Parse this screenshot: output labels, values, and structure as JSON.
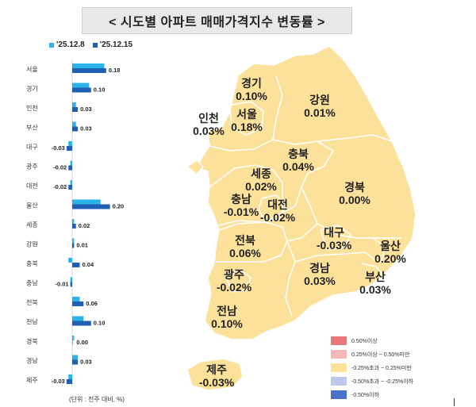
{
  "title": "< 시도별 아파트 매매가격지수 변동률 >",
  "legend": {
    "series": [
      {
        "name": "'25.12.8",
        "color": "#29b3e8"
      },
      {
        "name": "'25.12.15",
        "color": "#1f5fb4"
      }
    ]
  },
  "unit_note": "(단위 : 전주 대비, %)",
  "chart_data": {
    "type": "bar",
    "orientation": "horizontal",
    "categories": [
      "서울",
      "경기",
      "인천",
      "부산",
      "대구",
      "광주",
      "대전",
      "울산",
      "세종",
      "강원",
      "충북",
      "충남",
      "전북",
      "전남",
      "경북",
      "경남",
      "제주"
    ],
    "series": [
      {
        "name": "'25.12.8",
        "values": [
          0.17,
          0.09,
          0.02,
          0.02,
          -0.02,
          -0.01,
          -0.01,
          0.15,
          0.01,
          0.01,
          -0.02,
          -0.01,
          0.04,
          0.06,
          0.01,
          0.03,
          -0.02
        ]
      },
      {
        "name": "'25.12.15",
        "values": [
          0.18,
          0.1,
          0.03,
          0.03,
          -0.03,
          -0.02,
          -0.02,
          0.2,
          0.02,
          0.01,
          0.04,
          -0.01,
          0.06,
          0.1,
          0.0,
          0.03,
          -0.03
        ]
      }
    ],
    "value_labels": [
      "0.18",
      "0.10",
      "0.03",
      "0.03",
      "-0.03",
      "-0.02",
      "-0.02",
      "0.20",
      "0.02",
      "0.01",
      "0.04",
      "-0.01",
      "0.06",
      "0.10",
      "0.00",
      "0.03",
      "-0.03"
    ],
    "xlim": [
      -0.1,
      0.3
    ]
  },
  "map": {
    "regions": [
      {
        "name": "경기",
        "value": "0.10%"
      },
      {
        "name": "강원",
        "value": "0.01%"
      },
      {
        "name": "인천",
        "value": "0.03%"
      },
      {
        "name": "서울",
        "value": "0.18%"
      },
      {
        "name": "충북",
        "value": "0.04%"
      },
      {
        "name": "세종",
        "value": "0.02%"
      },
      {
        "name": "경북",
        "value": "0.00%"
      },
      {
        "name": "충남",
        "value": "-0.01%"
      },
      {
        "name": "대전",
        "value": "-0.02%"
      },
      {
        "name": "대구",
        "value": "-0.03%"
      },
      {
        "name": "울산",
        "value": "0.20%"
      },
      {
        "name": "전북",
        "value": "0.06%"
      },
      {
        "name": "광주",
        "value": "-0.02%"
      },
      {
        "name": "경남",
        "value": "0.03%"
      },
      {
        "name": "부산",
        "value": "0.03%"
      },
      {
        "name": "전남",
        "value": "0.10%"
      },
      {
        "name": "제주",
        "value": "-0.03%"
      }
    ],
    "fill_color": "#fbe19a",
    "legend": [
      {
        "label": "0.50%이상",
        "color": "#e8787a"
      },
      {
        "label": "0.25%이상 ~ 0.50%미만",
        "color": "#f3b8b8"
      },
      {
        "label": "-0.25%초과 ~ 0.25%미만",
        "color": "#fbe19a"
      },
      {
        "label": "-0.50%초과 ~ -0.25%이하",
        "color": "#bcc9ea"
      },
      {
        "label": "-0.50%이하",
        "color": "#4a72c8"
      }
    ]
  }
}
